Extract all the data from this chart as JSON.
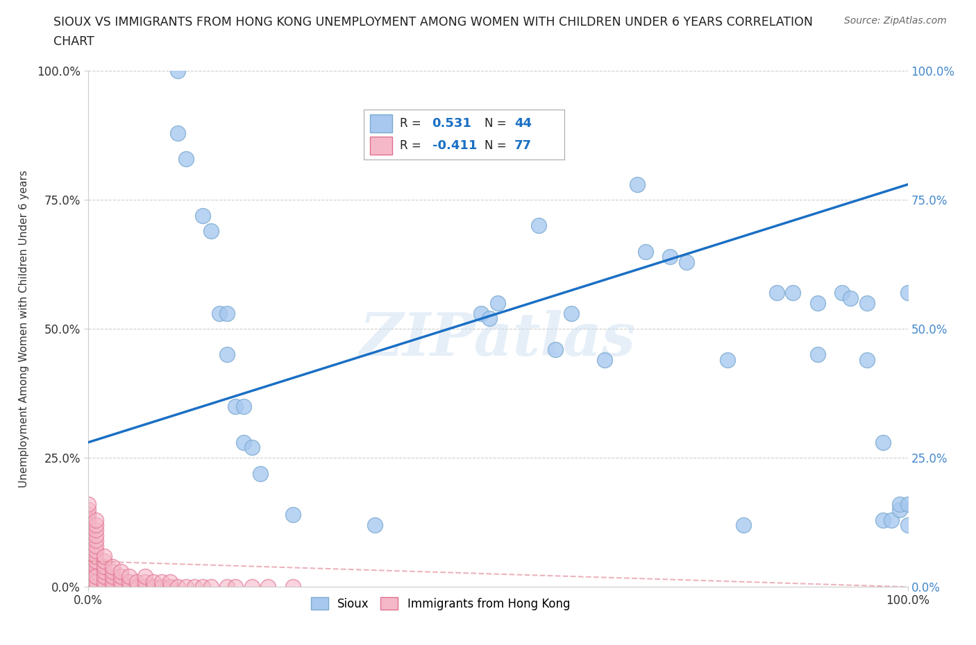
{
  "title_line1": "SIOUX VS IMMIGRANTS FROM HONG KONG UNEMPLOYMENT AMONG WOMEN WITH CHILDREN UNDER 6 YEARS CORRELATION",
  "title_line2": "CHART",
  "source": "Source: ZipAtlas.com",
  "ylabel": "Unemployment Among Women with Children Under 6 years",
  "watermark": "ZIPatlas",
  "background_color": "#ffffff",
  "grid_color": "#cccccc",
  "sioux_line_color": "#1a6fc4",
  "hk_line_color": "#e08090",
  "sioux_dot_color": "#a8c8f0",
  "hk_dot_color": "#f5b8c8",
  "sioux_dot_edge": "#7aaad0",
  "hk_dot_edge": "#e07090",
  "sioux_R": 0.531,
  "sioux_N": 44,
  "hk_R": -0.411,
  "hk_N": 77,
  "sioux_points_x": [
    11,
    11,
    12,
    14,
    15,
    16,
    17,
    17,
    18,
    19,
    19,
    20,
    21,
    25,
    35,
    48,
    49,
    50,
    55,
    57,
    59,
    63,
    67,
    68,
    71,
    73,
    78,
    80,
    84,
    86,
    89,
    89,
    92,
    93,
    95,
    95,
    97,
    97,
    98,
    99,
    99,
    100,
    100,
    100
  ],
  "sioux_points_y": [
    100,
    88,
    83,
    72,
    69,
    53,
    53,
    45,
    35,
    35,
    28,
    27,
    22,
    14,
    12,
    53,
    52,
    55,
    70,
    46,
    53,
    44,
    78,
    65,
    64,
    63,
    44,
    12,
    57,
    57,
    55,
    45,
    57,
    56,
    55,
    44,
    13,
    28,
    13,
    15,
    16,
    57,
    16,
    12
  ],
  "hk_cluster_x": [
    0,
    0,
    0,
    0,
    0,
    0,
    0,
    0,
    0,
    0,
    0,
    0,
    0,
    0,
    0,
    0,
    0,
    0,
    0,
    0,
    1,
    1,
    1,
    1,
    1,
    1,
    1,
    1,
    1,
    1,
    1,
    1,
    1,
    1,
    1,
    1,
    1,
    2,
    2,
    2,
    2,
    2,
    2,
    2,
    3,
    3,
    3,
    3,
    3,
    4,
    4,
    4,
    4,
    5,
    5,
    5,
    6,
    6,
    7,
    7,
    7,
    8,
    8,
    9,
    9,
    10,
    10,
    11,
    12,
    13,
    14,
    15,
    17,
    18,
    20,
    22,
    25
  ],
  "hk_cluster_y": [
    0,
    1,
    2,
    3,
    4,
    5,
    6,
    7,
    8,
    9,
    10,
    11,
    12,
    13,
    14,
    15,
    16,
    0,
    1,
    2,
    0,
    1,
    2,
    3,
    4,
    5,
    6,
    7,
    8,
    9,
    10,
    11,
    12,
    13,
    0,
    1,
    2,
    0,
    1,
    2,
    3,
    4,
    5,
    6,
    0,
    1,
    2,
    3,
    4,
    0,
    1,
    2,
    3,
    0,
    1,
    2,
    0,
    1,
    0,
    1,
    2,
    0,
    1,
    0,
    1,
    0,
    1,
    0,
    0,
    0,
    0,
    0,
    0,
    0,
    0,
    0,
    0
  ],
  "legend_sioux_R_text": "0.531",
  "legend_sioux_N_text": "44",
  "legend_hk_R_text": "-0.411",
  "legend_hk_N_text": "77"
}
